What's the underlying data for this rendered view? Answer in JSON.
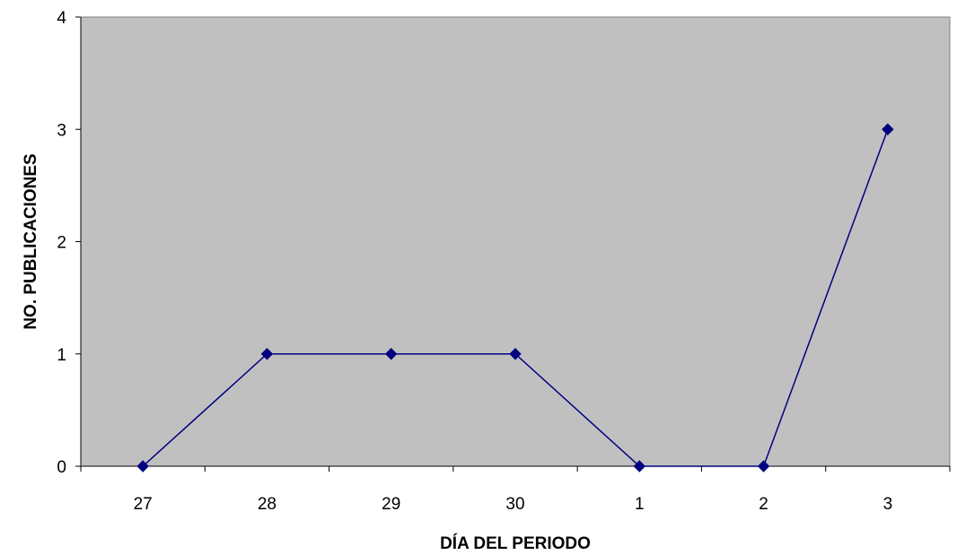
{
  "chart_data": {
    "type": "line",
    "title": "",
    "xlabel": "DÍA DEL PERIODO",
    "ylabel": "NO. PUBLICACIONES",
    "categories": [
      "27",
      "28",
      "29",
      "30",
      "1",
      "2",
      "3"
    ],
    "series": [
      {
        "values": [
          0,
          1,
          1,
          1,
          0,
          0,
          3
        ]
      }
    ],
    "ylim": [
      0,
      4
    ],
    "yticks": [
      "0",
      "1",
      "2",
      "3",
      "4"
    ],
    "grid": false,
    "legend": "none",
    "colors": {
      "plot_background": "#c0c0c0",
      "line": "#000080",
      "marker": "#000080",
      "axis": "#000000"
    }
  }
}
